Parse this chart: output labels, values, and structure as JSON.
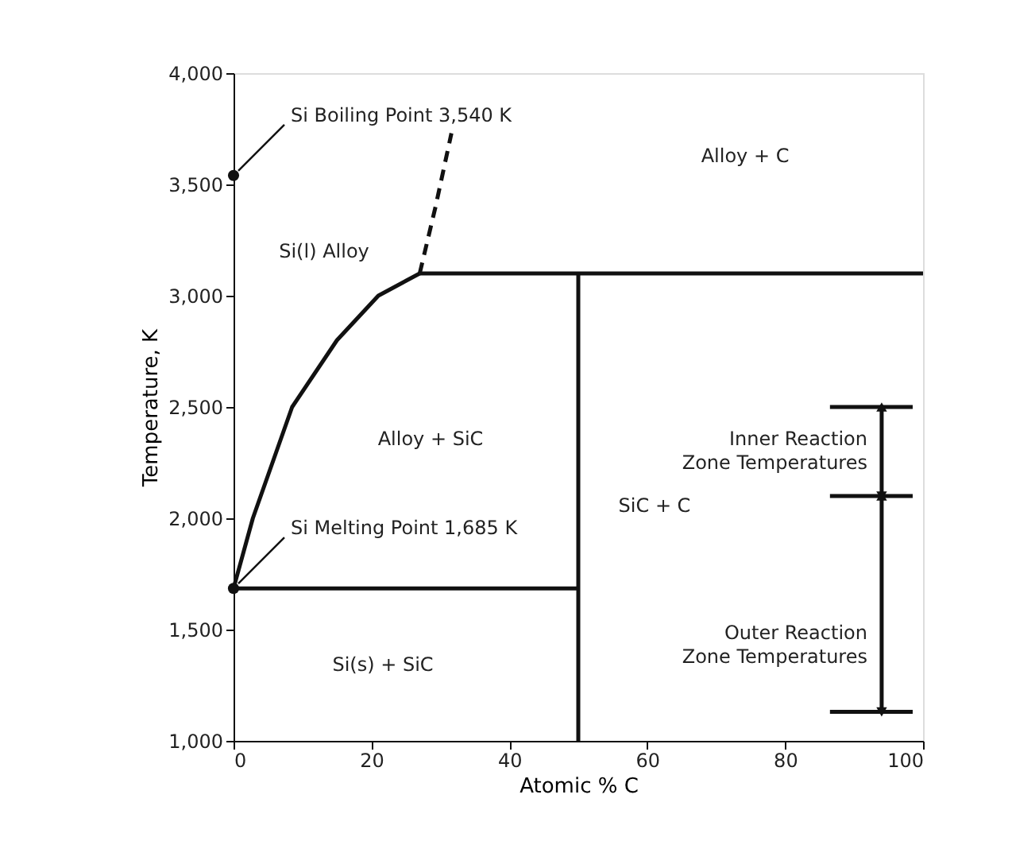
{
  "chart_data": {
    "type": "line",
    "xlabel": "Atomic % C",
    "ylabel": "Temperature, K",
    "xlim": [
      0,
      100
    ],
    "xticks": [
      0,
      20,
      40,
      60,
      80,
      100
    ],
    "ylim": [
      1000,
      4000
    ],
    "yticks": [
      {
        "value": 1000,
        "label": "1,000"
      },
      {
        "value": 1500,
        "label": "1,500"
      },
      {
        "value": 2000,
        "label": "2,000"
      },
      {
        "value": 2500,
        "label": "2,500"
      },
      {
        "value": 3000,
        "label": "3,000"
      },
      {
        "value": 3500,
        "label": "3,500"
      },
      {
        "value": 4000,
        "label": "4,000"
      }
    ],
    "grid": false,
    "series": [
      {
        "color": "#111111",
        "line_style": "solid",
        "x": [
          0,
          2.8,
          8.5,
          15,
          21,
          27
        ],
        "values": [
          1685,
          2000,
          2500,
          2800,
          3000,
          3100
        ]
      },
      {
        "color": "#111111",
        "line_style": "dashed",
        "x": [
          27,
          29.3,
          31.6
        ],
        "values": [
          3100,
          3400,
          3730
        ]
      },
      {
        "color": "#111111",
        "line_style": "solid",
        "x": [
          27,
          100
        ],
        "values": [
          3100,
          3100
        ]
      },
      {
        "color": "#111111",
        "line_style": "solid",
        "x": [
          50,
          50
        ],
        "values": [
          1000,
          3100
        ]
      },
      {
        "color": "#111111",
        "line_style": "solid",
        "x": [
          0,
          50
        ],
        "values": [
          1685,
          1685
        ]
      },
      {
        "type": "scatter",
        "color": "#111111",
        "marker": "circle",
        "x": [
          0,
          0
        ],
        "values": [
          3540,
          1685
        ]
      },
      {
        "color": "#111111",
        "line_style": "solid",
        "x": [
          86.5,
          98.5
        ],
        "values": [
          2500,
          2500
        ]
      },
      {
        "color": "#111111",
        "line_style": "solid",
        "x": [
          86.5,
          98.5
        ],
        "values": [
          2100,
          2100
        ]
      },
      {
        "color": "#111111",
        "line_style": "solid",
        "x": [
          86.5,
          98.5
        ],
        "values": [
          1130,
          1130
        ]
      },
      {
        "color": "#111111",
        "line_style": "solid",
        "marker": "triangle",
        "x": [
          94,
          94
        ],
        "values": [
          2100,
          2500
        ]
      },
      {
        "color": "#111111",
        "line_style": "solid",
        "marker": "triangle",
        "x": [
          94,
          94
        ],
        "values": [
          1130,
          2100
        ]
      }
    ],
    "annotations": [
      {
        "text": "Si Boiling Point 3,540 K",
        "x": 0,
        "y": 3540
      },
      {
        "text": "Si Melting Point 1,685 K",
        "x": 0,
        "y": 1685
      },
      "Si(l) Alloy",
      "Alloy + C",
      "Alloy + SiC",
      "SiC + C",
      "Si(s) + SiC",
      "Inner Reaction\nZone Temperatures",
      "Outer Reaction\nZone Temperatures"
    ]
  }
}
